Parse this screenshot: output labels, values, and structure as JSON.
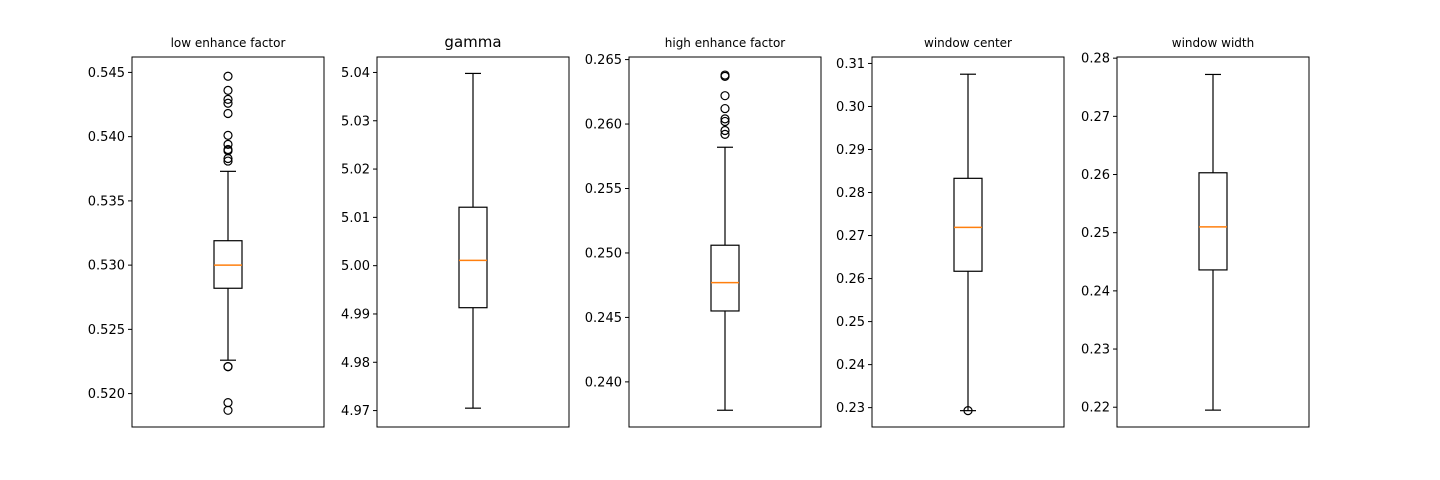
{
  "chart_data": [
    {
      "type": "box",
      "title": "low enhance factor",
      "ylim": [
        0.5174,
        0.5462
      ],
      "yticks": [
        0.52,
        0.525,
        0.53,
        0.535,
        0.54,
        0.545
      ],
      "ytick_labels": [
        "0.520",
        "0.525",
        "0.530",
        "0.535",
        "0.540",
        "0.545"
      ],
      "whisker_low": 0.5226,
      "q1": 0.5282,
      "median": 0.53,
      "q3": 0.5319,
      "whisker_high": 0.5373,
      "outliers": [
        0.5221,
        0.5221,
        0.5193,
        0.5187,
        0.5381,
        0.5383,
        0.5389,
        0.539,
        0.5394,
        0.5401,
        0.5418,
        0.5426,
        0.5429,
        0.5436,
        0.5447
      ]
    },
    {
      "type": "box",
      "title": "gamma",
      "ylim": [
        4.9666,
        5.0432
      ],
      "yticks": [
        4.97,
        4.98,
        4.99,
        5.0,
        5.01,
        5.02,
        5.03,
        5.04
      ],
      "ytick_labels": [
        "4.97",
        "4.98",
        "4.99",
        "5.00",
        "5.01",
        "5.02",
        "5.03",
        "5.04"
      ],
      "whisker_low": 4.9705,
      "q1": 4.9913,
      "median": 5.0011,
      "q3": 5.0121,
      "whisker_high": 5.0398,
      "outliers": []
    },
    {
      "type": "box",
      "title": "high enhance factor",
      "ylim": [
        0.2365,
        0.2652
      ],
      "yticks": [
        0.24,
        0.245,
        0.25,
        0.255,
        0.26,
        0.265
      ],
      "ytick_labels": [
        "0.240",
        "0.245",
        "0.250",
        "0.255",
        "0.260",
        "0.265"
      ],
      "whisker_low": 0.2378,
      "q1": 0.2455,
      "median": 0.2477,
      "q3": 0.2506,
      "whisker_high": 0.2582,
      "outliers": [
        0.2592,
        0.2595,
        0.2602,
        0.2604,
        0.2612,
        0.2622,
        0.2637,
        0.2638
      ]
    },
    {
      "type": "box",
      "title": "window center",
      "ylim": [
        0.2255,
        0.3115
      ],
      "yticks": [
        0.23,
        0.24,
        0.25,
        0.26,
        0.27,
        0.28,
        0.29,
        0.3,
        0.31
      ],
      "ytick_labels": [
        "0.23",
        "0.24",
        "0.25",
        "0.26",
        "0.27",
        "0.28",
        "0.29",
        "0.30",
        "0.31"
      ],
      "whisker_low": 0.2293,
      "q1": 0.2617,
      "median": 0.2719,
      "q3": 0.2833,
      "whisker_high": 0.3075,
      "outliers": [
        0.2293
      ]
    },
    {
      "type": "box",
      "title": "window width",
      "ylim": [
        0.2166,
        0.2802
      ],
      "yticks": [
        0.22,
        0.23,
        0.24,
        0.25,
        0.26,
        0.27,
        0.28
      ],
      "ytick_labels": [
        "0.22",
        "0.23",
        "0.24",
        "0.25",
        "0.26",
        "0.27",
        "0.28"
      ],
      "whisker_low": 0.2195,
      "q1": 0.2436,
      "median": 0.251,
      "q3": 0.2603,
      "whisker_high": 0.2772,
      "outliers": []
    }
  ],
  "colors": {
    "median": "#ff7f0e",
    "box": "#000000",
    "background": "#ffffff"
  }
}
